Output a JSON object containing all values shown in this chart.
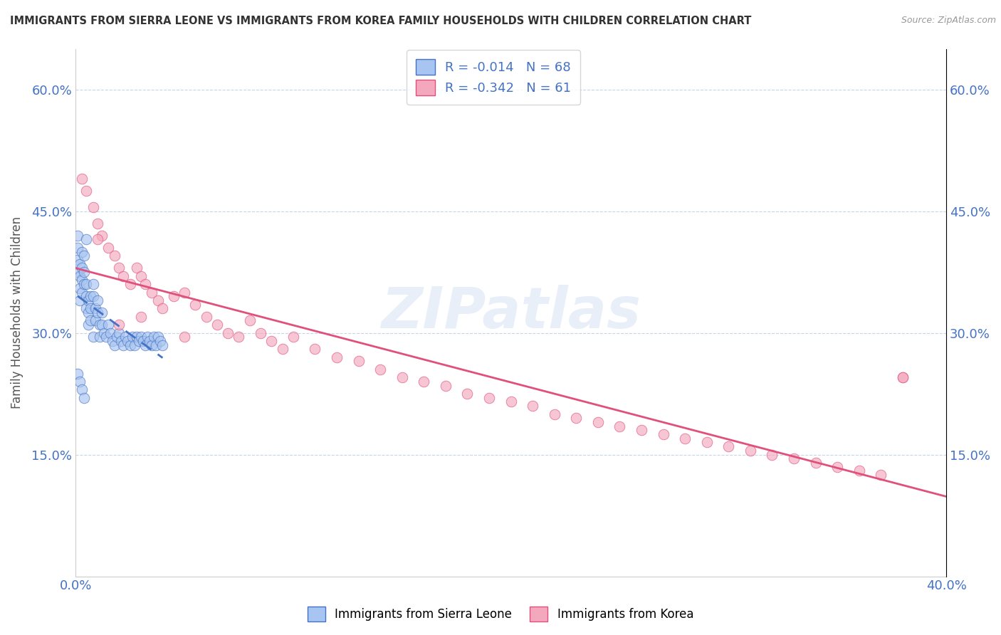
{
  "title": "IMMIGRANTS FROM SIERRA LEONE VS IMMIGRANTS FROM KOREA FAMILY HOUSEHOLDS WITH CHILDREN CORRELATION CHART",
  "source": "Source: ZipAtlas.com",
  "ylabel": "Family Households with Children",
  "xlim": [
    0.0,
    0.4
  ],
  "ylim": [
    0.0,
    0.65
  ],
  "yticks": [
    0.15,
    0.3,
    0.45,
    0.6
  ],
  "ytick_labels": [
    "15.0%",
    "30.0%",
    "45.0%",
    "60.0%"
  ],
  "xticks": [
    0.0,
    0.4
  ],
  "xtick_labels": [
    "0.0%",
    "40.0%"
  ],
  "legend_label1": "R = -0.014   N = 68",
  "legend_label2": "R = -0.342   N = 61",
  "color_sierra": "#a8c4f0",
  "color_korea": "#f4a8be",
  "trendline_sierra": "#4472c4",
  "trendline_korea": "#e0507a",
  "watermark": "ZIPatlas",
  "sierra_x": [
    0.001,
    0.001,
    0.001,
    0.001,
    0.002,
    0.002,
    0.002,
    0.002,
    0.003,
    0.003,
    0.003,
    0.003,
    0.004,
    0.004,
    0.004,
    0.005,
    0.005,
    0.005,
    0.005,
    0.006,
    0.006,
    0.006,
    0.007,
    0.007,
    0.007,
    0.008,
    0.008,
    0.008,
    0.009,
    0.009,
    0.01,
    0.01,
    0.011,
    0.011,
    0.012,
    0.012,
    0.013,
    0.014,
    0.015,
    0.016,
    0.017,
    0.018,
    0.019,
    0.02,
    0.021,
    0.022,
    0.023,
    0.024,
    0.025,
    0.026,
    0.027,
    0.028,
    0.029,
    0.03,
    0.031,
    0.032,
    0.033,
    0.034,
    0.035,
    0.036,
    0.037,
    0.038,
    0.039,
    0.04,
    0.001,
    0.002,
    0.003,
    0.004
  ],
  "sierra_y": [
    0.42,
    0.405,
    0.39,
    0.375,
    0.385,
    0.37,
    0.355,
    0.34,
    0.4,
    0.38,
    0.365,
    0.35,
    0.395,
    0.375,
    0.36,
    0.345,
    0.33,
    0.415,
    0.36,
    0.34,
    0.325,
    0.31,
    0.345,
    0.33,
    0.315,
    0.36,
    0.345,
    0.295,
    0.33,
    0.315,
    0.34,
    0.325,
    0.31,
    0.295,
    0.325,
    0.31,
    0.3,
    0.295,
    0.31,
    0.3,
    0.29,
    0.285,
    0.295,
    0.3,
    0.29,
    0.285,
    0.295,
    0.29,
    0.285,
    0.295,
    0.285,
    0.295,
    0.29,
    0.295,
    0.29,
    0.285,
    0.295,
    0.29,
    0.285,
    0.295,
    0.285,
    0.295,
    0.29,
    0.285,
    0.25,
    0.24,
    0.23,
    0.22
  ],
  "korea_x": [
    0.003,
    0.005,
    0.008,
    0.01,
    0.012,
    0.015,
    0.018,
    0.02,
    0.022,
    0.025,
    0.028,
    0.03,
    0.032,
    0.035,
    0.038,
    0.04,
    0.045,
    0.05,
    0.055,
    0.06,
    0.065,
    0.07,
    0.075,
    0.08,
    0.085,
    0.09,
    0.095,
    0.1,
    0.11,
    0.12,
    0.13,
    0.14,
    0.15,
    0.16,
    0.17,
    0.18,
    0.19,
    0.2,
    0.21,
    0.22,
    0.23,
    0.24,
    0.25,
    0.26,
    0.27,
    0.28,
    0.29,
    0.3,
    0.31,
    0.32,
    0.33,
    0.34,
    0.35,
    0.36,
    0.37,
    0.38,
    0.01,
    0.02,
    0.03,
    0.05,
    0.38
  ],
  "korea_y": [
    0.49,
    0.475,
    0.455,
    0.435,
    0.42,
    0.405,
    0.395,
    0.38,
    0.37,
    0.36,
    0.38,
    0.37,
    0.36,
    0.35,
    0.34,
    0.33,
    0.345,
    0.35,
    0.335,
    0.32,
    0.31,
    0.3,
    0.295,
    0.315,
    0.3,
    0.29,
    0.28,
    0.295,
    0.28,
    0.27,
    0.265,
    0.255,
    0.245,
    0.24,
    0.235,
    0.225,
    0.22,
    0.215,
    0.21,
    0.2,
    0.195,
    0.19,
    0.185,
    0.18,
    0.175,
    0.17,
    0.165,
    0.16,
    0.155,
    0.15,
    0.145,
    0.14,
    0.135,
    0.13,
    0.125,
    0.245,
    0.415,
    0.31,
    0.32,
    0.295,
    0.245
  ],
  "background_color": "#ffffff",
  "grid_color": "#c8d4e8",
  "title_color": "#333333",
  "axis_label_color": "#555555",
  "tick_color": "#4472c4",
  "watermark_color": "#d0dcf0",
  "watermark_alpha": 0.45
}
